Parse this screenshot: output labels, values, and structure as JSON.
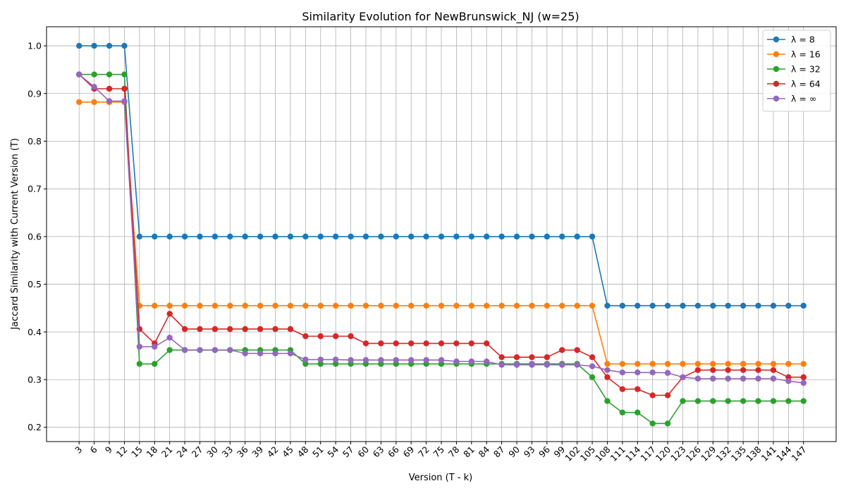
{
  "chart_data": {
    "type": "line",
    "title": "Similarity Evolution for NewBrunswick_NJ (w=25)",
    "xlabel": "Version (T - k)",
    "ylabel": "Jaccard Similarity with Current Version (T)",
    "ylim": [
      0.17,
      1.04
    ],
    "yticks": [
      "0.2",
      "0.3",
      "0.4",
      "0.5",
      "0.6",
      "0.7",
      "0.8",
      "0.9",
      "1.0"
    ],
    "grid": true,
    "legend_position": "top-right",
    "x": [
      3,
      6,
      9,
      12,
      15,
      18,
      21,
      24,
      27,
      30,
      33,
      36,
      39,
      42,
      45,
      48,
      51,
      54,
      57,
      60,
      63,
      66,
      69,
      72,
      75,
      78,
      81,
      84,
      87,
      90,
      93,
      96,
      99,
      102,
      105,
      108,
      111,
      114,
      117,
      120,
      123,
      126,
      129,
      132,
      135,
      138,
      141,
      144,
      147
    ],
    "series": [
      {
        "name": "λ = 8",
        "color": "#1f77b4",
        "values": [
          1.0,
          1.0,
          1.0,
          1.0,
          0.6,
          0.6,
          0.6,
          0.6,
          0.6,
          0.6,
          0.6,
          0.6,
          0.6,
          0.6,
          0.6,
          0.6,
          0.6,
          0.6,
          0.6,
          0.6,
          0.6,
          0.6,
          0.6,
          0.6,
          0.6,
          0.6,
          0.6,
          0.6,
          0.6,
          0.6,
          0.6,
          0.6,
          0.6,
          0.6,
          0.6,
          0.455,
          0.455,
          0.455,
          0.455,
          0.455,
          0.455,
          0.455,
          0.455,
          0.455,
          0.455,
          0.455,
          0.455,
          0.455,
          0.455
        ]
      },
      {
        "name": "λ = 16",
        "color": "#ff7f0e",
        "values": [
          0.882,
          0.882,
          0.882,
          0.882,
          0.455,
          0.455,
          0.455,
          0.455,
          0.455,
          0.455,
          0.455,
          0.455,
          0.455,
          0.455,
          0.455,
          0.455,
          0.455,
          0.455,
          0.455,
          0.455,
          0.455,
          0.455,
          0.455,
          0.455,
          0.455,
          0.455,
          0.455,
          0.455,
          0.455,
          0.455,
          0.455,
          0.455,
          0.455,
          0.455,
          0.455,
          0.333,
          0.333,
          0.333,
          0.333,
          0.333,
          0.333,
          0.333,
          0.333,
          0.333,
          0.333,
          0.333,
          0.333,
          0.333,
          0.333
        ]
      },
      {
        "name": "λ = 32",
        "color": "#2ca02c",
        "values": [
          0.94,
          0.94,
          0.94,
          0.94,
          0.333,
          0.333,
          0.362,
          0.362,
          0.362,
          0.362,
          0.362,
          0.362,
          0.362,
          0.362,
          0.362,
          0.333,
          0.333,
          0.333,
          0.333,
          0.333,
          0.333,
          0.333,
          0.333,
          0.333,
          0.333,
          0.333,
          0.333,
          0.333,
          0.333,
          0.333,
          0.333,
          0.333,
          0.333,
          0.333,
          0.305,
          0.255,
          0.231,
          0.231,
          0.208,
          0.208,
          0.255,
          0.255,
          0.255,
          0.255,
          0.255,
          0.255,
          0.255,
          0.255,
          0.255
        ]
      },
      {
        "name": "λ = 64",
        "color": "#d62728",
        "values": [
          0.94,
          0.91,
          0.91,
          0.91,
          0.406,
          0.376,
          0.438,
          0.406,
          0.406,
          0.406,
          0.406,
          0.406,
          0.406,
          0.406,
          0.406,
          0.391,
          0.391,
          0.391,
          0.391,
          0.376,
          0.376,
          0.376,
          0.376,
          0.376,
          0.376,
          0.376,
          0.376,
          0.376,
          0.347,
          0.347,
          0.347,
          0.347,
          0.362,
          0.362,
          0.347,
          0.305,
          0.28,
          0.28,
          0.267,
          0.267,
          0.305,
          0.32,
          0.32,
          0.32,
          0.32,
          0.32,
          0.32,
          0.305,
          0.305
        ]
      },
      {
        "name": "λ = ∞",
        "color": "#9467bd",
        "values": [
          0.94,
          0.914,
          0.884,
          0.884,
          0.369,
          0.369,
          0.388,
          0.362,
          0.362,
          0.362,
          0.362,
          0.355,
          0.355,
          0.355,
          0.355,
          0.342,
          0.342,
          0.342,
          0.341,
          0.341,
          0.341,
          0.341,
          0.341,
          0.341,
          0.341,
          0.338,
          0.338,
          0.338,
          0.331,
          0.331,
          0.331,
          0.331,
          0.331,
          0.331,
          0.328,
          0.32,
          0.315,
          0.315,
          0.315,
          0.314,
          0.305,
          0.302,
          0.302,
          0.302,
          0.302,
          0.302,
          0.302,
          0.297,
          0.293
        ]
      }
    ]
  }
}
